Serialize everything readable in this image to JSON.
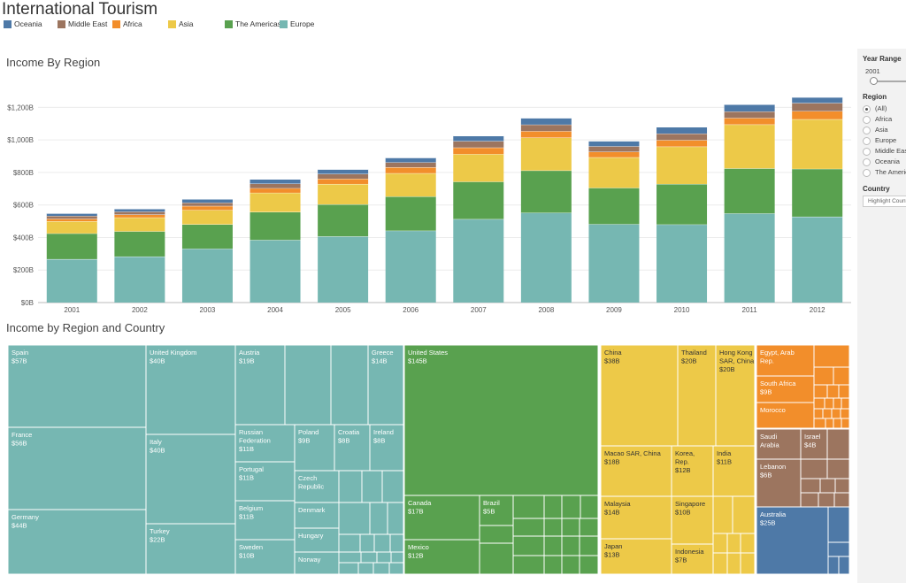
{
  "app": {
    "title": "International Tourism"
  },
  "legend": [
    {
      "name": "Oceania",
      "color": "#4e79a7"
    },
    {
      "name": "Middle East",
      "color": "#9c755f"
    },
    {
      "name": "Africa",
      "color": "#f28e2b"
    },
    {
      "name": "Asia",
      "color": "#edc948"
    },
    {
      "name": "The Americas",
      "color": "#59a14f"
    },
    {
      "name": "Europe",
      "color": "#76b7b2"
    }
  ],
  "chart_data": [
    {
      "type": "bar",
      "stacked": true,
      "title": "Income By Region",
      "xlabel": "",
      "ylabel": "",
      "ylim": [
        0,
        1300
      ],
      "yticks": [
        0,
        200,
        400,
        600,
        800,
        1000,
        1200
      ],
      "ytick_labels": [
        "$0B",
        "$200B",
        "$400B",
        "$600B",
        "$800B",
        "$1,000B",
        "$1,200B"
      ],
      "categories": [
        "2001",
        "2002",
        "2003",
        "2004",
        "2005",
        "2006",
        "2007",
        "2008",
        "2009",
        "2010",
        "2011",
        "2012"
      ],
      "series": [
        {
          "name": "Europe",
          "color": "#76b7b2",
          "values": [
            267,
            283,
            331,
            385,
            407,
            442,
            513,
            552,
            482,
            480,
            548,
            528
          ]
        },
        {
          "name": "The Americas",
          "color": "#59a14f",
          "values": [
            158,
            155,
            150,
            172,
            197,
            210,
            230,
            260,
            223,
            249,
            277,
            294
          ]
        },
        {
          "name": "Asia",
          "color": "#edc948",
          "values": [
            75,
            85,
            88,
            118,
            125,
            143,
            170,
            202,
            188,
            230,
            270,
            305
          ]
        },
        {
          "name": "Africa",
          "color": "#f28e2b",
          "values": [
            15,
            18,
            25,
            28,
            32,
            37,
            40,
            40,
            34,
            40,
            40,
            50
          ]
        },
        {
          "name": "Middle East",
          "color": "#9c755f",
          "values": [
            18,
            18,
            20,
            28,
            30,
            30,
            40,
            40,
            34,
            40,
            40,
            50
          ]
        },
        {
          "name": "Oceania",
          "color": "#4e79a7",
          "values": [
            15,
            17,
            22,
            27,
            28,
            28,
            32,
            40,
            32,
            40,
            43,
            35
          ]
        }
      ]
    },
    {
      "type": "treemap",
      "title": "Income by Region and Country",
      "cells": [
        {
          "name": "Spain",
          "value": "$57B",
          "region": "Europe"
        },
        {
          "name": "France",
          "value": "$56B",
          "region": "Europe"
        },
        {
          "name": "Germany",
          "value": "$44B",
          "region": "Europe"
        },
        {
          "name": "United Kingdom",
          "value": "$40B",
          "region": "Europe"
        },
        {
          "name": "Italy",
          "value": "$40B",
          "region": "Europe"
        },
        {
          "name": "Turkey",
          "value": "$22B",
          "region": "Europe"
        },
        {
          "name": "Austria",
          "value": "$19B",
          "region": "Europe"
        },
        {
          "name": "Greece",
          "value": "$14B",
          "region": "Europe"
        },
        {
          "name": "Russian Federation",
          "value": "$11B",
          "region": "Europe"
        },
        {
          "name": "Poland",
          "value": "$9B",
          "region": "Europe"
        },
        {
          "name": "Croatia",
          "value": "$8B",
          "region": "Europe"
        },
        {
          "name": "Ireland",
          "value": "$8B",
          "region": "Europe"
        },
        {
          "name": "Portugal",
          "value": "$11B",
          "region": "Europe"
        },
        {
          "name": "Czech Republic",
          "value": "",
          "region": "Europe"
        },
        {
          "name": "Belgium",
          "value": "$11B",
          "region": "Europe"
        },
        {
          "name": "Denmark",
          "value": "",
          "region": "Europe"
        },
        {
          "name": "Hungary",
          "value": "",
          "region": "Europe"
        },
        {
          "name": "Sweden",
          "value": "$10B",
          "region": "Europe"
        },
        {
          "name": "Norway",
          "value": "",
          "region": "Europe"
        },
        {
          "name": "United States",
          "value": "$145B",
          "region": "The Americas"
        },
        {
          "name": "Canada",
          "value": "$17B",
          "region": "The Americas"
        },
        {
          "name": "Brazil",
          "value": "$5B",
          "region": "The Americas"
        },
        {
          "name": "Mexico",
          "value": "$12B",
          "region": "The Americas"
        },
        {
          "name": "China",
          "value": "$38B",
          "region": "Asia"
        },
        {
          "name": "Thailand",
          "value": "$20B",
          "region": "Asia"
        },
        {
          "name": "Hong Kong SAR, China",
          "value": "$20B",
          "region": "Asia"
        },
        {
          "name": "Macao SAR, China",
          "value": "$18B",
          "region": "Asia"
        },
        {
          "name": "Korea, Rep.",
          "value": "$12B",
          "region": "Asia"
        },
        {
          "name": "India",
          "value": "$11B",
          "region": "Asia"
        },
        {
          "name": "Malaysia",
          "value": "$14B",
          "region": "Asia"
        },
        {
          "name": "Singapore",
          "value": "$10B",
          "region": "Asia"
        },
        {
          "name": "Japan",
          "value": "$13B",
          "region": "Asia"
        },
        {
          "name": "Indonesia",
          "value": "$7B",
          "region": "Asia"
        },
        {
          "name": "Egypt, Arab Rep.",
          "value": "",
          "region": "Africa"
        },
        {
          "name": "South Africa",
          "value": "$9B",
          "region": "Africa"
        },
        {
          "name": "Morocco",
          "value": "",
          "region": "Africa"
        },
        {
          "name": "Saudi Arabia",
          "value": "",
          "region": "Middle East"
        },
        {
          "name": "Israel",
          "value": "$4B",
          "region": "Middle East"
        },
        {
          "name": "Lebanon",
          "value": "$6B",
          "region": "Middle East"
        },
        {
          "name": "Australia",
          "value": "$25B",
          "region": "Oceania"
        }
      ]
    }
  ],
  "sidebar": {
    "year_range_label": "Year Range",
    "year_value": "2001",
    "region_label": "Region",
    "region_options": [
      "(All)",
      "Africa",
      "Asia",
      "Europe",
      "Middle East",
      "Oceania",
      "The Americas"
    ],
    "region_selected": "(All)",
    "country_label": "Country",
    "country_placeholder": "Highlight Country"
  }
}
